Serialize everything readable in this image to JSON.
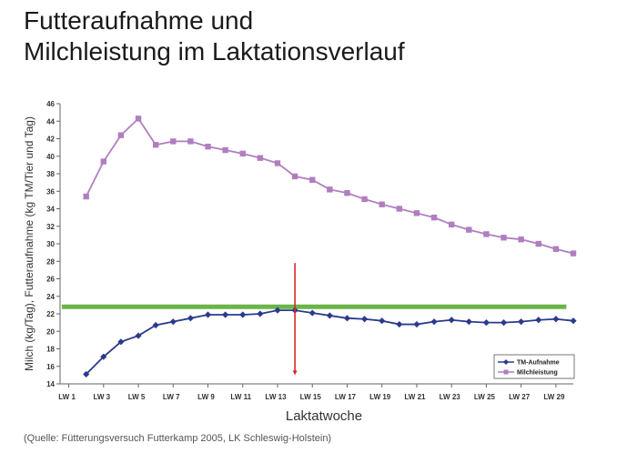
{
  "title_line1": "Futteraufnahme und",
  "title_line2": "Milchleistung im Laktationsverlauf",
  "source": "(Quelle: Fütterungsversuch Futterkamp 2005, LK Schleswig-Holstein)",
  "chart_data": {
    "type": "line",
    "xlabel": "Laktatwoche",
    "ylabel": "Milch (kg/Tag),  Futteraufnahme (kg TM/Tier und Tag)",
    "ylim": [
      14,
      46
    ],
    "yticks": [
      14,
      16,
      18,
      20,
      22,
      24,
      26,
      28,
      30,
      32,
      34,
      36,
      38,
      40,
      42,
      44,
      46
    ],
    "xlim": [
      0.5,
      30
    ],
    "xticks": [
      {
        "x": 1,
        "label": "LW 1"
      },
      {
        "x": 3,
        "label": "LW 3"
      },
      {
        "x": 5,
        "label": "LW 5"
      },
      {
        "x": 7,
        "label": "LW 7"
      },
      {
        "x": 9,
        "label": "LW 9"
      },
      {
        "x": 11,
        "label": "LW 11"
      },
      {
        "x": 13,
        "label": "LW 13"
      },
      {
        "x": 15,
        "label": "LW 15"
      },
      {
        "x": 17,
        "label": "LW 17"
      },
      {
        "x": 19,
        "label": "LW 19"
      },
      {
        "x": 21,
        "label": "LW 21"
      },
      {
        "x": 23,
        "label": "LW 23"
      },
      {
        "x": 25,
        "label": "LW 25"
      },
      {
        "x": 27,
        "label": "LW 27"
      },
      {
        "x": 29,
        "label": "LW 29"
      }
    ],
    "x": [
      2,
      3,
      4,
      5,
      6,
      7,
      8,
      9,
      10,
      11,
      12,
      13,
      14,
      15,
      16,
      17,
      18,
      19,
      20,
      21,
      22,
      23,
      24,
      25,
      26,
      27,
      28,
      29,
      30
    ],
    "series": [
      {
        "name": "TM-Aufnahme",
        "color": "#2b3a8c",
        "marker": "diamond",
        "values": [
          15.1,
          17.1,
          18.8,
          19.5,
          20.7,
          21.1,
          21.5,
          21.9,
          21.9,
          21.9,
          22.0,
          22.4,
          22.4,
          22.1,
          21.8,
          21.5,
          21.4,
          21.2,
          20.8,
          20.8,
          21.1,
          21.3,
          21.1,
          21.0,
          21.0,
          21.1,
          21.3,
          21.4,
          21.2
        ]
      },
      {
        "name": "Milchleistung",
        "color": "#b07ec0",
        "marker": "square",
        "values": [
          35.4,
          39.4,
          42.4,
          44.3,
          41.3,
          41.7,
          41.7,
          41.1,
          40.7,
          40.3,
          39.8,
          39.2,
          37.7,
          37.3,
          36.2,
          35.8,
          35.1,
          34.5,
          34.0,
          33.5,
          33.0,
          32.2,
          31.6,
          31.1,
          30.7,
          30.5,
          30.0,
          29.4,
          28.9
        ]
      }
    ],
    "reference_line": {
      "y": 22.8,
      "x_start": 0.6,
      "x_end": 29.6,
      "color": "#6ab547"
    },
    "marker_line": {
      "x": 14,
      "y_start": 27.8,
      "y_end": 15.0,
      "color": "#d42a2a"
    },
    "grid": false,
    "legend_position": "bottom-right"
  }
}
